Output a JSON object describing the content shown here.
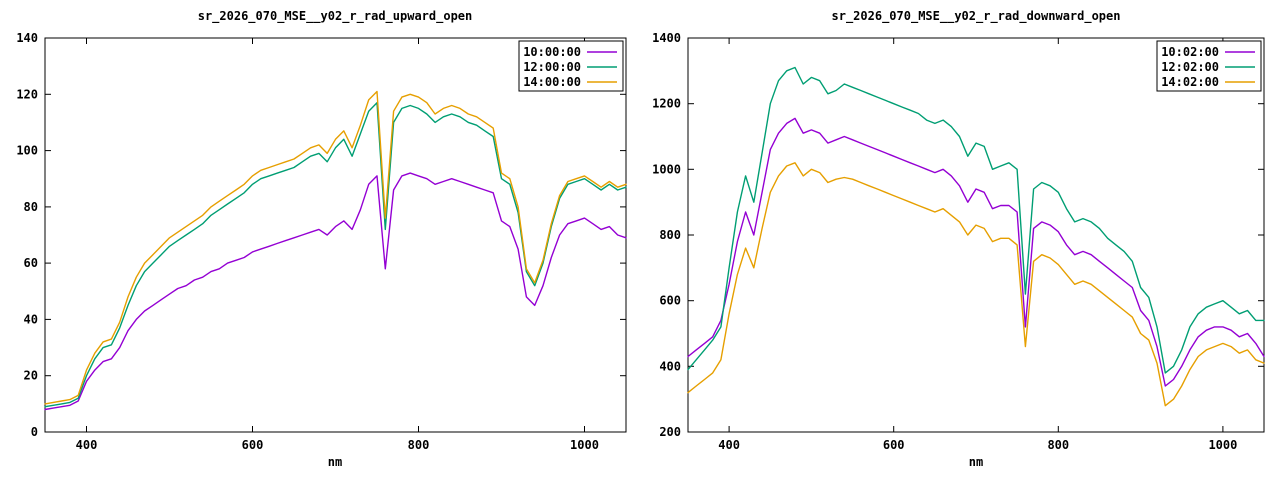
{
  "chart_data": [
    {
      "type": "line",
      "title": "sr_2026_070_MSE__y02_r_rad_upward_open",
      "xlabel": "nm",
      "ylabel": "",
      "xlim": [
        350,
        1050
      ],
      "ylim": [
        0,
        140
      ],
      "xticks": [
        400,
        600,
        800,
        1000
      ],
      "yticks": [
        0,
        20,
        40,
        60,
        80,
        100,
        120,
        140
      ],
      "legend_position": "top-right",
      "grid": false,
      "x": [
        350,
        360,
        370,
        380,
        390,
        400,
        410,
        420,
        430,
        440,
        450,
        460,
        470,
        480,
        490,
        500,
        510,
        520,
        530,
        540,
        550,
        560,
        570,
        580,
        590,
        600,
        610,
        620,
        630,
        640,
        650,
        660,
        670,
        680,
        690,
        700,
        710,
        720,
        730,
        740,
        750,
        760,
        770,
        780,
        790,
        800,
        810,
        820,
        830,
        840,
        850,
        860,
        870,
        880,
        890,
        900,
        910,
        920,
        930,
        940,
        950,
        960,
        970,
        980,
        990,
        1000,
        1010,
        1020,
        1030,
        1040,
        1050
      ],
      "series": [
        {
          "name": "10:00:00",
          "color": "#9400d3",
          "values": [
            8,
            8.5,
            9,
            9.5,
            11,
            18,
            22,
            25,
            26,
            30,
            36,
            40,
            43,
            45,
            47,
            49,
            51,
            52,
            54,
            55,
            57,
            58,
            60,
            61,
            62,
            64,
            65,
            66,
            67,
            68,
            69,
            70,
            71,
            72,
            70,
            73,
            75,
            72,
            79,
            88,
            91,
            58,
            86,
            91,
            92,
            91,
            90,
            88,
            89,
            90,
            89,
            88,
            87,
            86,
            85,
            75,
            73,
            65,
            48,
            45,
            52,
            62,
            70,
            74,
            75,
            76,
            74,
            72,
            73,
            70,
            69
          ]
        },
        {
          "name": "12:00:00",
          "color": "#009e73",
          "values": [
            9,
            9.5,
            10,
            10.5,
            12,
            20,
            26,
            30,
            31,
            37,
            45,
            52,
            57,
            60,
            63,
            66,
            68,
            70,
            72,
            74,
            77,
            79,
            81,
            83,
            85,
            88,
            90,
            91,
            92,
            93,
            94,
            96,
            98,
            99,
            96,
            101,
            104,
            98,
            106,
            114,
            117,
            72,
            110,
            115,
            116,
            115,
            113,
            110,
            112,
            113,
            112,
            110,
            109,
            107,
            105,
            90,
            88,
            78,
            57,
            52,
            60,
            73,
            83,
            88,
            89,
            90,
            88,
            86,
            88,
            86,
            87
          ]
        },
        {
          "name": "14:00:00",
          "color": "#e69f00",
          "values": [
            10,
            10.5,
            11,
            11.5,
            13,
            22,
            28,
            32,
            33,
            39,
            48,
            55,
            60,
            63,
            66,
            69,
            71,
            73,
            75,
            77,
            80,
            82,
            84,
            86,
            88,
            91,
            93,
            94,
            95,
            96,
            97,
            99,
            101,
            102,
            99,
            104,
            107,
            101,
            109,
            118,
            121,
            76,
            114,
            119,
            120,
            119,
            117,
            113,
            115,
            116,
            115,
            113,
            112,
            110,
            108,
            92,
            90,
            80,
            58,
            53,
            61,
            74,
            84,
            89,
            90,
            91,
            89,
            87,
            89,
            87,
            88
          ]
        }
      ]
    },
    {
      "type": "line",
      "title": "sr_2026_070_MSE__y02_r_rad_downward_open",
      "xlabel": "nm",
      "ylabel": "",
      "xlim": [
        350,
        1050
      ],
      "ylim": [
        200,
        1400
      ],
      "xticks": [
        400,
        600,
        800,
        1000
      ],
      "yticks": [
        200,
        400,
        600,
        800,
        1000,
        1200,
        1400
      ],
      "legend_position": "top-right",
      "grid": false,
      "x": [
        350,
        360,
        370,
        380,
        390,
        400,
        410,
        420,
        430,
        440,
        450,
        460,
        470,
        480,
        490,
        500,
        510,
        520,
        530,
        540,
        550,
        560,
        570,
        580,
        590,
        600,
        610,
        620,
        630,
        640,
        650,
        660,
        670,
        680,
        690,
        700,
        710,
        720,
        730,
        740,
        750,
        760,
        770,
        780,
        790,
        800,
        810,
        820,
        830,
        840,
        850,
        860,
        870,
        880,
        890,
        900,
        910,
        920,
        930,
        940,
        950,
        960,
        970,
        980,
        990,
        1000,
        1010,
        1020,
        1030,
        1040,
        1050
      ],
      "series": [
        {
          "name": "10:02:00",
          "color": "#9400d3",
          "values": [
            430,
            450,
            470,
            490,
            540,
            650,
            780,
            870,
            800,
            930,
            1060,
            1110,
            1140,
            1155,
            1110,
            1120,
            1110,
            1080,
            1090,
            1100,
            1090,
            1080,
            1070,
            1060,
            1050,
            1040,
            1030,
            1020,
            1010,
            1000,
            990,
            1000,
            980,
            950,
            900,
            940,
            930,
            880,
            890,
            890,
            870,
            520,
            820,
            840,
            830,
            810,
            770,
            740,
            750,
            740,
            720,
            700,
            680,
            660,
            640,
            570,
            540,
            460,
            340,
            360,
            400,
            450,
            490,
            510,
            520,
            520,
            510,
            490,
            500,
            470,
            430
          ]
        },
        {
          "name": "12:02:00",
          "color": "#009e73",
          "values": [
            390,
            420,
            450,
            480,
            520,
            700,
            870,
            980,
            900,
            1050,
            1200,
            1270,
            1300,
            1310,
            1260,
            1280,
            1270,
            1230,
            1240,
            1260,
            1250,
            1240,
            1230,
            1220,
            1210,
            1200,
            1190,
            1180,
            1170,
            1150,
            1140,
            1150,
            1130,
            1100,
            1040,
            1080,
            1070,
            1000,
            1010,
            1020,
            1000,
            620,
            940,
            960,
            950,
            930,
            880,
            840,
            850,
            840,
            820,
            790,
            770,
            750,
            720,
            640,
            610,
            520,
            380,
            400,
            450,
            520,
            560,
            580,
            590,
            600,
            580,
            560,
            570,
            540,
            540
          ]
        },
        {
          "name": "14:02:00",
          "color": "#e69f00",
          "values": [
            320,
            340,
            360,
            380,
            420,
            560,
            680,
            760,
            700,
            820,
            930,
            980,
            1010,
            1020,
            980,
            1000,
            990,
            960,
            970,
            975,
            970,
            960,
            950,
            940,
            930,
            920,
            910,
            900,
            890,
            880,
            870,
            880,
            860,
            840,
            800,
            830,
            820,
            780,
            790,
            790,
            770,
            460,
            720,
            740,
            730,
            710,
            680,
            650,
            660,
            650,
            630,
            610,
            590,
            570,
            550,
            500,
            480,
            410,
            280,
            300,
            340,
            390,
            430,
            450,
            460,
            470,
            460,
            440,
            450,
            420,
            410
          ]
        }
      ]
    }
  ]
}
